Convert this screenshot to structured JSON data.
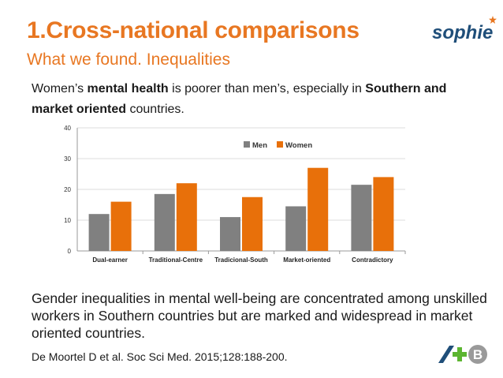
{
  "header": {
    "title": "1.Cross-national comparisons",
    "subtitle": "What we found. Inequalities",
    "logo_text": "sophie"
  },
  "intro": {
    "part1": "Women’s ",
    "bold1": "mental health",
    "part2": " is poorer than men’s, especially in ",
    "bold2": "Southern and market oriented",
    "part3": " countries."
  },
  "outro": {
    "text": "Gender inequalities in mental well-being are concentrated among unskilled workers in Southern countries but are marked and widespread in market oriented countries."
  },
  "citation": {
    "text": "De Moortel D et al. Soc Sci Med. 2015;128:188-200."
  },
  "colors": {
    "accent": "#e87722",
    "men": "#808080",
    "women": "#e8700a",
    "logo_blue": "#1f4e79",
    "logo_green": "#5cb531"
  },
  "chart_data": {
    "type": "bar",
    "title": "",
    "xlabel": "",
    "ylabel": "",
    "ylim": [
      0,
      40
    ],
    "yticks": [
      0,
      10,
      20,
      30,
      40
    ],
    "categories": [
      "Dual-earner",
      "Traditional-Centre",
      "Tradicional-South",
      "Market-oriented",
      "Contradictory"
    ],
    "series": [
      {
        "name": "Men",
        "values": [
          12,
          18.5,
          11,
          14.5,
          21.5
        ]
      },
      {
        "name": "Women",
        "values": [
          16,
          22,
          17.5,
          27,
          24
        ]
      }
    ],
    "legend_position": "top-right",
    "grid": true
  }
}
